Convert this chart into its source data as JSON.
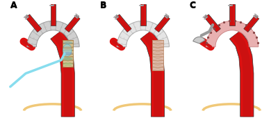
{
  "bg_color": "#ffffff",
  "panel_labels": [
    "A",
    "B",
    "C"
  ],
  "aorta_red": "#dd1111",
  "aorta_light": "#ee4444",
  "aorta_dark": "#990000",
  "graft_gray": "#d0d0d0",
  "graft_light": "#e8e8e8",
  "graft_edge": "#999999",
  "stent_tan": "#c8a060",
  "stent_edge": "#a07840",
  "balloon_blue": "#88ddee",
  "diaphragm_color": "#f0c878",
  "pink_graft": "#e8b0b0",
  "pink_graft_edge": "#cc8888",
  "vessel_gray": "#bbbbbb",
  "figsize": [
    4.0,
    1.74
  ],
  "dpi": 100
}
